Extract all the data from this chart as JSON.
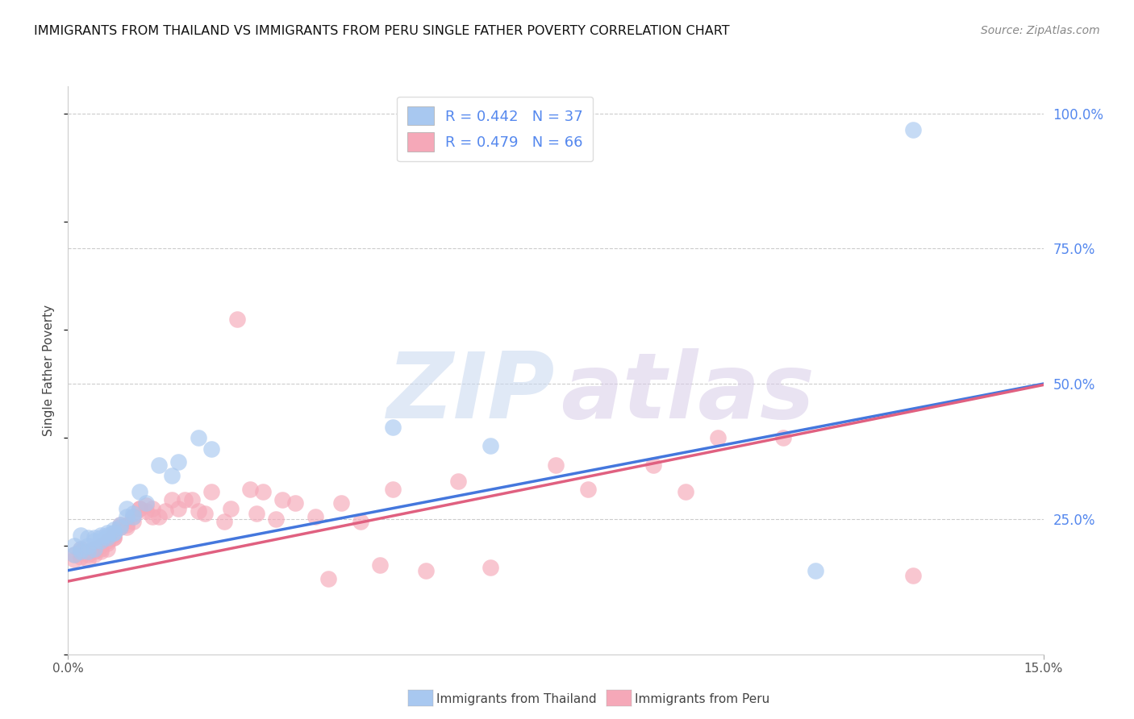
{
  "title": "IMMIGRANTS FROM THAILAND VS IMMIGRANTS FROM PERU SINGLE FATHER POVERTY CORRELATION CHART",
  "source": "Source: ZipAtlas.com",
  "ylabel": "Single Father Poverty",
  "xlim": [
    0.0,
    0.15
  ],
  "ylim": [
    0.0,
    1.05
  ],
  "x_ticks": [
    0.0,
    0.15
  ],
  "x_tick_labels": [
    "0.0%",
    "15.0%"
  ],
  "y_ticks_right": [
    0.25,
    0.5,
    0.75,
    1.0
  ],
  "y_tick_labels_right": [
    "25.0%",
    "50.0%",
    "75.0%",
    "100.0%"
  ],
  "legend_r_thailand": "R = 0.442",
  "legend_n_thailand": "N = 37",
  "legend_r_peru": "R = 0.479",
  "legend_n_peru": "N = 66",
  "thailand_color": "#a8c8f0",
  "peru_color": "#f5a8b8",
  "line_thailand_color": "#4477dd",
  "line_peru_color": "#e06080",
  "watermark_zip_color": "#c8d8f0",
  "watermark_atlas_color": "#d8cce8",
  "background_color": "#ffffff",
  "grid_color": "#cccccc",
  "thailand_x": [
    0.001,
    0.001,
    0.002,
    0.002,
    0.002,
    0.003,
    0.003,
    0.003,
    0.004,
    0.004,
    0.004,
    0.005,
    0.005,
    0.005,
    0.006,
    0.006,
    0.006,
    0.007,
    0.007,
    0.007,
    0.008,
    0.008,
    0.009,
    0.009,
    0.01,
    0.01,
    0.011,
    0.012,
    0.014,
    0.016,
    0.017,
    0.02,
    0.022,
    0.05,
    0.065,
    0.115,
    0.13
  ],
  "thailand_y": [
    0.185,
    0.2,
    0.195,
    0.22,
    0.19,
    0.2,
    0.215,
    0.19,
    0.21,
    0.215,
    0.195,
    0.215,
    0.22,
    0.21,
    0.22,
    0.215,
    0.225,
    0.23,
    0.225,
    0.225,
    0.24,
    0.235,
    0.27,
    0.255,
    0.255,
    0.26,
    0.3,
    0.28,
    0.35,
    0.33,
    0.355,
    0.4,
    0.38,
    0.42,
    0.385,
    0.155,
    0.97
  ],
  "peru_x": [
    0.001,
    0.001,
    0.002,
    0.002,
    0.002,
    0.003,
    0.003,
    0.003,
    0.004,
    0.004,
    0.004,
    0.005,
    0.005,
    0.005,
    0.006,
    0.006,
    0.006,
    0.007,
    0.007,
    0.007,
    0.008,
    0.008,
    0.009,
    0.009,
    0.01,
    0.01,
    0.011,
    0.011,
    0.012,
    0.012,
    0.013,
    0.013,
    0.014,
    0.015,
    0.016,
    0.017,
    0.018,
    0.019,
    0.02,
    0.021,
    0.022,
    0.024,
    0.025,
    0.026,
    0.028,
    0.029,
    0.03,
    0.032,
    0.033,
    0.035,
    0.038,
    0.04,
    0.042,
    0.045,
    0.048,
    0.05,
    0.055,
    0.06,
    0.065,
    0.075,
    0.08,
    0.09,
    0.095,
    0.1,
    0.11,
    0.13
  ],
  "peru_y": [
    0.175,
    0.185,
    0.18,
    0.19,
    0.195,
    0.185,
    0.19,
    0.175,
    0.195,
    0.19,
    0.185,
    0.19,
    0.195,
    0.2,
    0.205,
    0.21,
    0.195,
    0.22,
    0.215,
    0.215,
    0.24,
    0.235,
    0.235,
    0.24,
    0.245,
    0.255,
    0.27,
    0.27,
    0.265,
    0.275,
    0.255,
    0.27,
    0.255,
    0.265,
    0.285,
    0.27,
    0.285,
    0.285,
    0.265,
    0.26,
    0.3,
    0.245,
    0.27,
    0.62,
    0.305,
    0.26,
    0.3,
    0.25,
    0.285,
    0.28,
    0.255,
    0.14,
    0.28,
    0.245,
    0.165,
    0.305,
    0.155,
    0.32,
    0.16,
    0.35,
    0.305,
    0.35,
    0.3,
    0.4,
    0.4,
    0.145
  ]
}
